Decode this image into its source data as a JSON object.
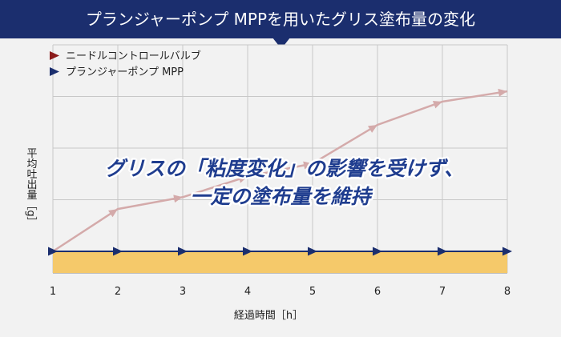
{
  "header": {
    "title": "プランジャーポンプ MPPを用いたグリス塗布量の変化"
  },
  "colors": {
    "header_bg": "#1b2e6e",
    "needle_valve": "#8b1a1a",
    "needle_valve_line": "#d4aaaa",
    "plunger_pump": "#1b2e6e",
    "fill_band": "#f5c96a",
    "callout": "#1f3d8f"
  },
  "callout": {
    "line1": "グリスの「粘度変化」の影響を受けず、",
    "line2": "一定の塗布量を維持"
  },
  "chart_data": {
    "type": "line",
    "title": "プランジャーポンプ MPPを用いたグリス塗布量の変化",
    "xlabel": "経過時間［h］",
    "ylabel": "平均吐出量［g］",
    "x": [
      1,
      2,
      3,
      4,
      5,
      6,
      7,
      8
    ],
    "ylim": [
      0,
      4
    ],
    "grid": true,
    "legend_position": "top-left",
    "series": [
      {
        "name": "ニードルコントロールバルブ",
        "color": "#d4aaaa",
        "marker_color": "#8b1a1a",
        "values": [
          0,
          0.82,
          1.05,
          1.45,
          1.7,
          2.45,
          2.9,
          3.1
        ]
      },
      {
        "name": "プランジャーポンプ MPP",
        "color": "#1b2e6e",
        "marker_color": "#1b2e6e",
        "values": [
          0,
          0,
          0,
          0,
          0,
          0,
          0,
          0
        ]
      }
    ]
  }
}
